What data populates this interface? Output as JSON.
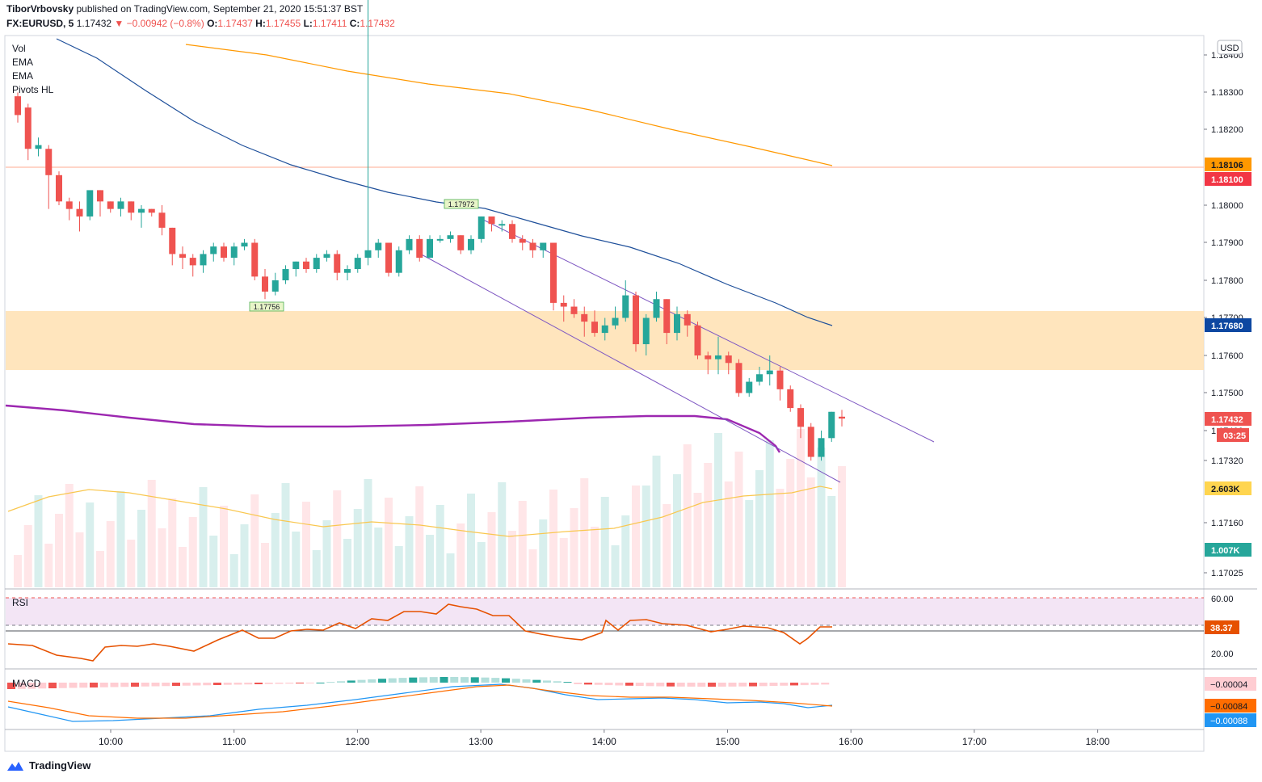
{
  "header": {
    "author": "TiborVrbovsky",
    "published_text": "published on TradingView.com, September 21, 2020 15:51:37 BST",
    "symbol": "FX:EURUSD, 5",
    "last": "1.17432",
    "change": "−0.00942 (−0.8%)",
    "o_label": "O:",
    "o_val": "1.17437",
    "h_label": "H:",
    "h_val": "1.17455",
    "l_label": "L:",
    "l_val": "1.17411",
    "c_label": "C:",
    "c_val": "1.17432"
  },
  "legend": [
    "Vol",
    "EMA",
    "EMA",
    "Pivots HL"
  ],
  "currency_label": "USD",
  "price_ticks": [
    "1.18400",
    "1.18300",
    "1.18200",
    "1.18000",
    "1.17900",
    "1.17800",
    "1.17700",
    "1.17600",
    "1.17500",
    "1.17400",
    "1.17320",
    "1.17160",
    "1.17025"
  ],
  "price_badges": [
    {
      "text": "1.18106",
      "bg": "#ff9800",
      "fg": "#131722"
    },
    {
      "text": "1.18100",
      "bg": "#f23645",
      "fg": "#ffffff"
    },
    {
      "text": "1.17680",
      "bg": "#0d47a1",
      "fg": "#ffffff"
    },
    {
      "text": "1.17432",
      "bg": "#ef5350",
      "fg": "#ffffff"
    },
    {
      "text": "03:25",
      "bg": "#ef5350",
      "fg": "#ffffff"
    },
    {
      "text": "2.603K",
      "bg": "#ffd54f",
      "fg": "#131722"
    },
    {
      "text": "1.007K",
      "bg": "#26a69a",
      "fg": "#ffffff"
    }
  ],
  "pivot_labels": [
    "1.17972",
    "1.17756"
  ],
  "rsi": {
    "label": "RSI",
    "ticks": [
      "60.00",
      "20.00"
    ],
    "value": "38.37"
  },
  "macd": {
    "label": "MACD",
    "values": [
      "−0.00004",
      "−0.00084",
      "−0.00088"
    ]
  },
  "time_ticks": [
    "10:00",
    "11:00",
    "12:00",
    "13:00",
    "14:00",
    "15:00",
    "16:00",
    "17:00",
    "18:00"
  ],
  "footer": {
    "brand": "TradingView"
  },
  "colors": {
    "up": "#26a69a",
    "down": "#ef5350",
    "ema_fast": "#1e4f9a",
    "ema_slow": "#ff9800",
    "pivot": "#9c27b0",
    "zone": "#ffe0b2",
    "channel": "#7e57c2",
    "rsi_line": "#e65100"
  },
  "chart_data": {
    "type": "candlestick",
    "interval": "5",
    "x_time_ticks": [
      "10:00",
      "11:00",
      "12:00",
      "13:00",
      "14:00",
      "15:00",
      "16:00",
      "17:00",
      "18:00"
    ],
    "ylim": [
      1.17025,
      1.184
    ],
    "ohlc_approx": [
      [
        1.1829,
        1.183,
        1.1822,
        1.1824
      ],
      [
        1.1826,
        1.1827,
        1.1812,
        1.1815
      ],
      [
        1.1815,
        1.1818,
        1.1813,
        1.1816
      ],
      [
        1.1815,
        1.1816,
        1.1799,
        1.1808
      ],
      [
        1.1808,
        1.1809,
        1.18,
        1.1801
      ],
      [
        1.1801,
        1.1802,
        1.1796,
        1.1799
      ],
      [
        1.1799,
        1.1801,
        1.1793,
        1.1797
      ],
      [
        1.1797,
        1.1803,
        1.1796,
        1.1804
      ],
      [
        1.1804,
        1.1804,
        1.1797,
        1.1801
      ],
      [
        1.1801,
        1.1801,
        1.1798,
        1.1799
      ],
      [
        1.1799,
        1.1802,
        1.1797,
        1.1801
      ],
      [
        1.1801,
        1.1801,
        1.1796,
        1.1798
      ],
      [
        1.1798,
        1.18,
        1.1794,
        1.1799
      ],
      [
        1.1799,
        1.1799,
        1.1797,
        1.1798
      ],
      [
        1.1798,
        1.18,
        1.1792,
        1.1794
      ],
      [
        1.1794,
        1.1794,
        1.1784,
        1.1787
      ],
      [
        1.1787,
        1.1789,
        1.1783,
        1.1786
      ],
      [
        1.1786,
        1.1787,
        1.1781,
        1.1784
      ],
      [
        1.1784,
        1.1788,
        1.1782,
        1.1787
      ],
      [
        1.1787,
        1.179,
        1.1785,
        1.1789
      ],
      [
        1.1789,
        1.179,
        1.1785,
        1.1786
      ],
      [
        1.1786,
        1.179,
        1.1784,
        1.1789
      ],
      [
        1.1789,
        1.1791,
        1.1788,
        1.179
      ],
      [
        1.179,
        1.1791,
        1.178,
        1.1781
      ],
      [
        1.1781,
        1.1783,
        1.1775,
        1.1777
      ],
      [
        1.1777,
        1.1782,
        1.1776,
        1.178
      ],
      [
        1.178,
        1.1784,
        1.1779,
        1.1783
      ],
      [
        1.1783,
        1.1785,
        1.1781,
        1.1785
      ],
      [
        1.1785,
        1.1786,
        1.1782,
        1.1783
      ],
      [
        1.1783,
        1.1787,
        1.1782,
        1.1786
      ],
      [
        1.1786,
        1.1788,
        1.1785,
        1.1787
      ],
      [
        1.1787,
        1.1788,
        1.178,
        1.1782
      ],
      [
        1.1782,
        1.1784,
        1.178,
        1.1783
      ],
      [
        1.1783,
        1.1787,
        1.1782,
        1.1786
      ],
      [
        1.1786,
        1.1893,
        1.1784,
        1.1788
      ],
      [
        1.1788,
        1.1791,
        1.1786,
        1.179
      ],
      [
        1.179,
        1.179,
        1.1781,
        1.1782
      ],
      [
        1.1782,
        1.1789,
        1.1781,
        1.1788
      ],
      [
        1.1788,
        1.1792,
        1.1787,
        1.1791
      ],
      [
        1.1791,
        1.1792,
        1.1785,
        1.1786
      ],
      [
        1.1786,
        1.1792,
        1.1786,
        1.1791
      ],
      [
        1.1791,
        1.1792,
        1.179,
        1.1791
      ],
      [
        1.1791,
        1.1793,
        1.179,
        1.1792
      ],
      [
        1.1792,
        1.1792,
        1.1787,
        1.1788
      ],
      [
        1.1788,
        1.1792,
        1.1787,
        1.1791
      ],
      [
        1.1791,
        1.1797,
        1.179,
        1.1797
      ],
      [
        1.1797,
        1.1797,
        1.1793,
        1.1795
      ],
      [
        1.1795,
        1.1796,
        1.1793,
        1.1795
      ],
      [
        1.1795,
        1.1796,
        1.179,
        1.1791
      ],
      [
        1.1791,
        1.1792,
        1.1788,
        1.179
      ],
      [
        1.179,
        1.1791,
        1.1786,
        1.1788
      ],
      [
        1.1788,
        1.179,
        1.1786,
        1.179
      ],
      [
        1.179,
        1.179,
        1.1772,
        1.1774
      ],
      [
        1.1774,
        1.1776,
        1.1769,
        1.1773
      ],
      [
        1.1773,
        1.1775,
        1.177,
        1.1771
      ],
      [
        1.1771,
        1.1773,
        1.1765,
        1.1769
      ],
      [
        1.1769,
        1.1772,
        1.1765,
        1.1766
      ],
      [
        1.1766,
        1.177,
        1.1764,
        1.1768
      ],
      [
        1.1768,
        1.1773,
        1.1767,
        1.177
      ],
      [
        1.177,
        1.178,
        1.1769,
        1.1776
      ],
      [
        1.1776,
        1.1777,
        1.1761,
        1.1763
      ],
      [
        1.1763,
        1.1771,
        1.176,
        1.177
      ],
      [
        1.177,
        1.1777,
        1.1769,
        1.1775
      ],
      [
        1.1775,
        1.1775,
        1.1763,
        1.1766
      ],
      [
        1.1766,
        1.1773,
        1.1764,
        1.1771
      ],
      [
        1.1771,
        1.1772,
        1.1765,
        1.1768
      ],
      [
        1.1768,
        1.1769,
        1.1759,
        1.176
      ],
      [
        1.176,
        1.1761,
        1.1755,
        1.1759
      ],
      [
        1.1759,
        1.1765,
        1.1755,
        1.176
      ],
      [
        1.176,
        1.1761,
        1.1755,
        1.1758
      ],
      [
        1.1758,
        1.1759,
        1.1749,
        1.175
      ],
      [
        1.175,
        1.1754,
        1.1749,
        1.1753
      ],
      [
        1.1753,
        1.1757,
        1.1752,
        1.1755
      ],
      [
        1.1755,
        1.176,
        1.1752,
        1.1756
      ],
      [
        1.1756,
        1.1757,
        1.1748,
        1.1751
      ],
      [
        1.1751,
        1.1752,
        1.1745,
        1.1746
      ],
      [
        1.1746,
        1.1747,
        1.1738,
        1.1741
      ],
      [
        1.1741,
        1.1742,
        1.1732,
        1.1733
      ],
      [
        1.1733,
        1.174,
        1.1732,
        1.1738
      ],
      [
        1.1738,
        1.1745,
        1.1737,
        1.1745
      ],
      [
        1.17437,
        1.17455,
        1.17411,
        1.17432
      ]
    ]
  }
}
